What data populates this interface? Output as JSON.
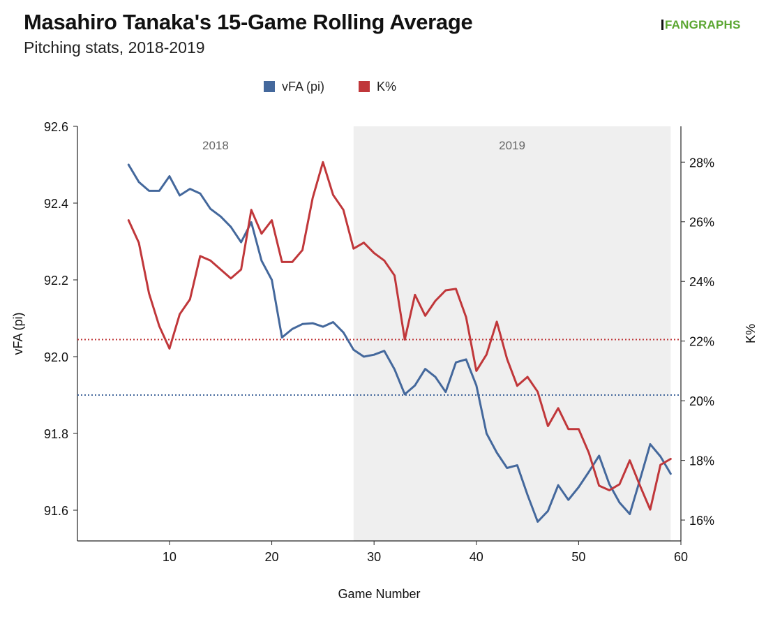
{
  "header": {
    "title": "Masahiro Tanaka's 15-Game Rolling Average",
    "subtitle": "Pitching stats, 2018-2019",
    "logo_text": "FANGRAPHS"
  },
  "colors": {
    "vfa": "#44689c",
    "kpct": "#c0373a",
    "band_2019": "#efefef"
  },
  "chart_data": {
    "type": "line",
    "xlabel": "Game Number",
    "ylabel_left": "vFA (pi)",
    "ylabel_right": "K%",
    "xlim": [
      1,
      60
    ],
    "ylim_left": [
      91.52,
      92.6
    ],
    "ylim_right": [
      15.3,
      29.2
    ],
    "x_ticks": [
      10,
      20,
      30,
      40,
      50,
      60
    ],
    "y_left_ticks": [
      91.6,
      91.8,
      92.0,
      92.2,
      92.4,
      92.6
    ],
    "y_left_tick_labels": [
      "91.6",
      "91.8",
      "92.0",
      "92.2",
      "92.4",
      "92.6"
    ],
    "y_right_ticks": [
      16,
      18,
      20,
      22,
      24,
      26,
      28
    ],
    "y_right_tick_labels": [
      "16%",
      "18%",
      "20%",
      "22%",
      "24%",
      "26%",
      "28%"
    ],
    "legend_position": "top-center",
    "grid": false,
    "regions": [
      {
        "label": "2018",
        "x_start": 1,
        "x_end": 28,
        "shaded": false
      },
      {
        "label": "2019",
        "x_start": 28,
        "x_end": 59,
        "shaded": true
      }
    ],
    "reference_lines": [
      {
        "series": "K%",
        "axis": "right",
        "value": 22.05
      },
      {
        "series": "vFA (pi)",
        "axis": "left",
        "value": 91.9
      }
    ],
    "x": [
      6,
      7,
      8,
      9,
      10,
      11,
      12,
      13,
      14,
      15,
      16,
      17,
      18,
      19,
      20,
      21,
      22,
      23,
      24,
      25,
      26,
      27,
      28,
      29,
      30,
      31,
      32,
      33,
      34,
      35,
      36,
      37,
      38,
      39,
      40,
      41,
      42,
      43,
      44,
      45,
      46,
      47,
      48,
      49,
      50,
      51,
      52,
      53,
      54,
      55,
      56,
      57,
      58,
      59
    ],
    "series": [
      {
        "name": "vFA (pi)",
        "axis": "left",
        "values": [
          92.5,
          92.455,
          92.432,
          92.432,
          92.47,
          92.42,
          92.437,
          92.425,
          92.385,
          92.365,
          92.338,
          92.298,
          92.35,
          92.25,
          92.2,
          92.05,
          92.072,
          92.085,
          92.087,
          92.078,
          92.09,
          92.063,
          92.018,
          92.0,
          92.005,
          92.015,
          91.967,
          91.902,
          91.925,
          91.968,
          91.947,
          91.908,
          91.985,
          91.993,
          91.925,
          91.8,
          91.75,
          91.71,
          91.717,
          91.64,
          91.57,
          91.598,
          91.665,
          91.627,
          91.66,
          91.7,
          91.742,
          91.668,
          91.62,
          91.59,
          91.68,
          91.772,
          91.74,
          91.695
        ]
      },
      {
        "name": "K%",
        "axis": "right",
        "values": [
          26.05,
          25.3,
          23.6,
          22.5,
          21.75,
          22.9,
          23.4,
          24.85,
          24.7,
          24.4,
          24.1,
          24.4,
          26.4,
          25.6,
          26.05,
          24.65,
          24.65,
          25.05,
          26.8,
          28.0,
          26.9,
          26.4,
          25.1,
          25.3,
          24.95,
          24.7,
          24.2,
          22.05,
          23.55,
          22.85,
          23.35,
          23.7,
          23.75,
          22.8,
          21.0,
          21.55,
          22.65,
          21.4,
          20.5,
          20.8,
          20.3,
          19.15,
          19.75,
          19.05,
          19.05,
          18.25,
          17.15,
          17.0,
          17.2,
          18.0,
          17.15,
          16.35,
          17.85,
          18.05
        ]
      }
    ]
  }
}
